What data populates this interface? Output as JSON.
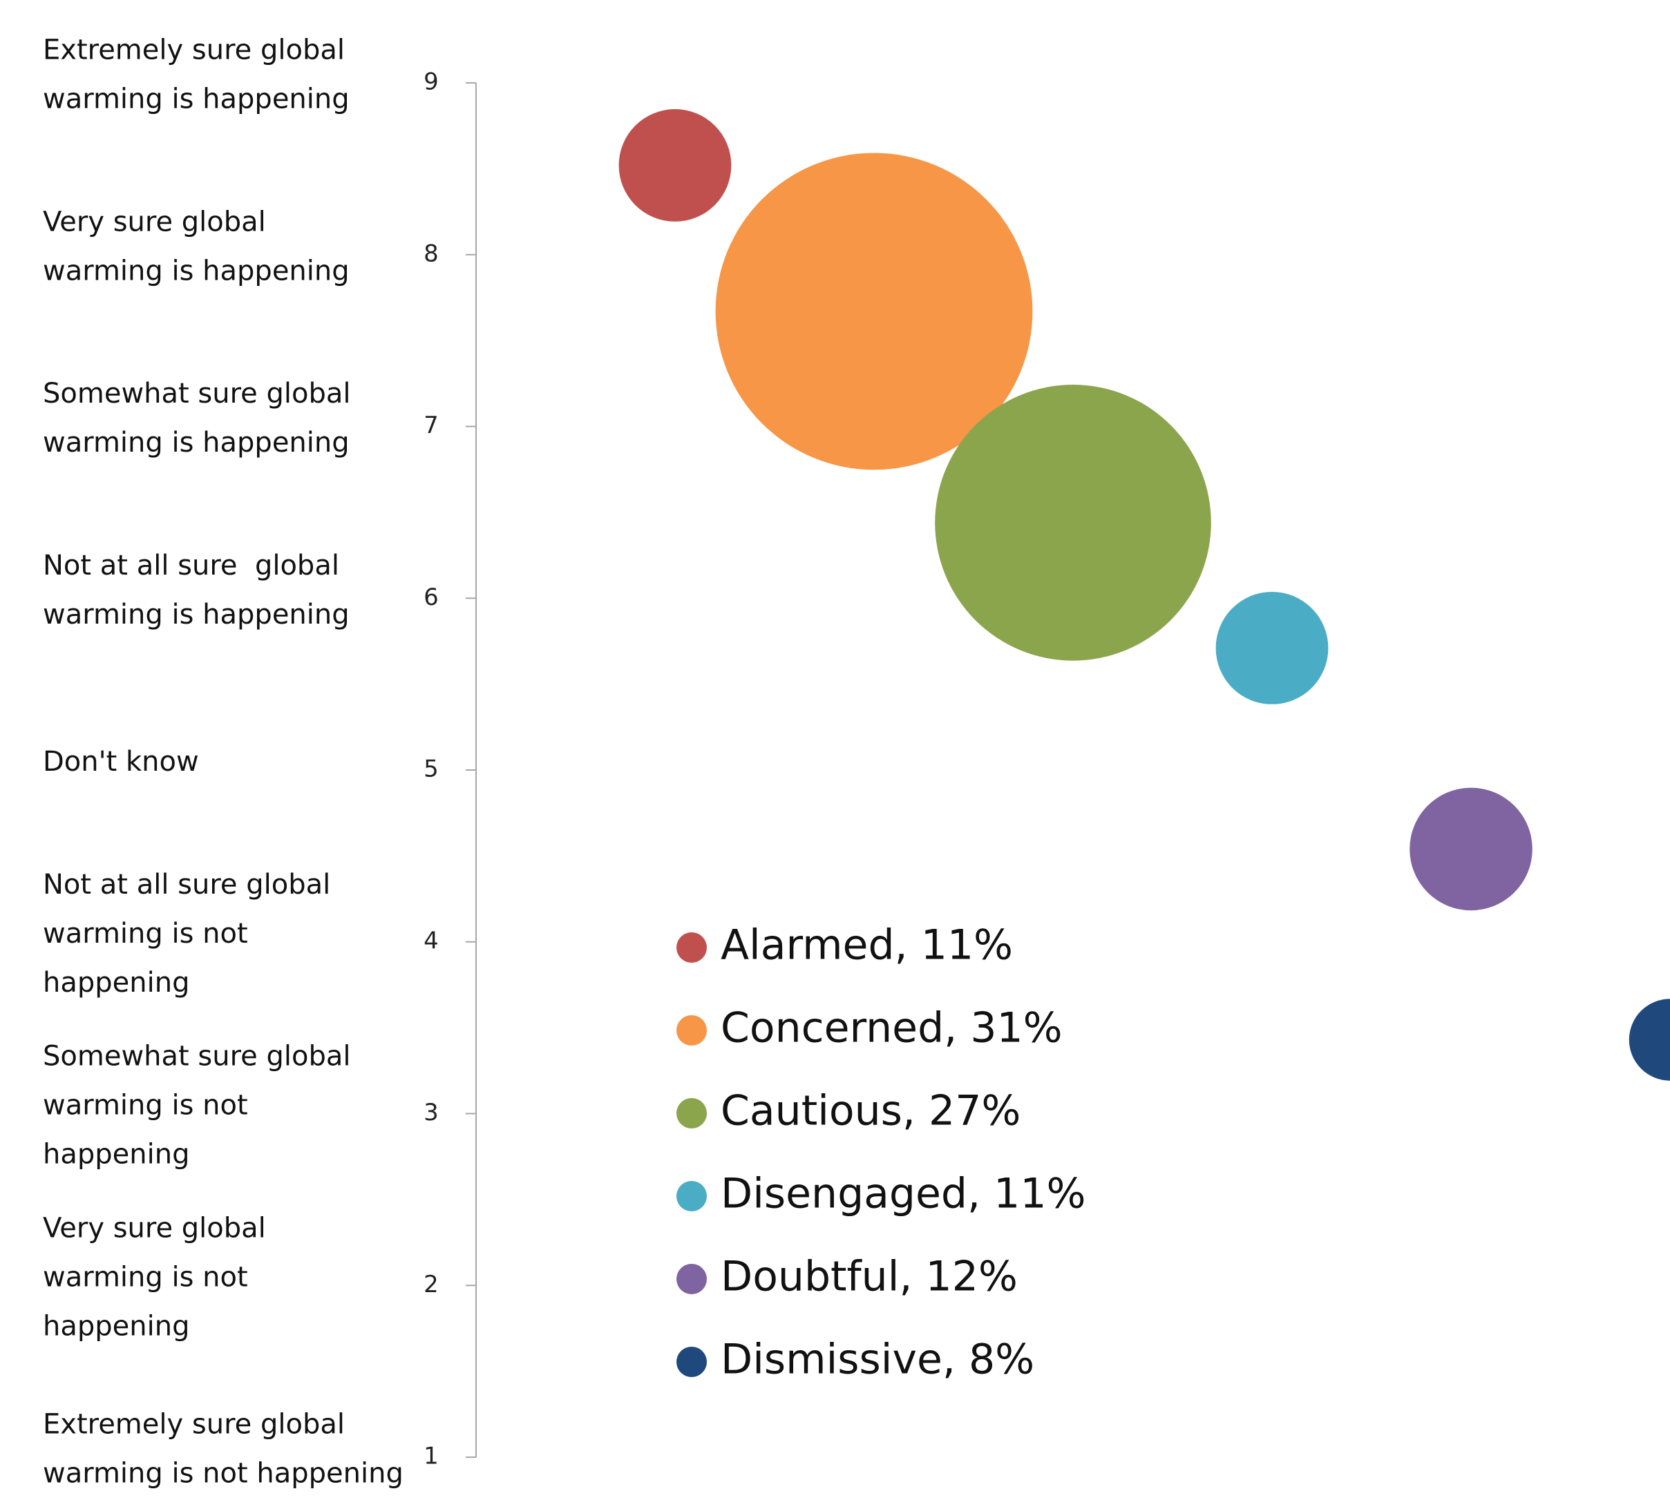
{
  "chart_data": {
    "type": "bubble",
    "ylim": [
      1,
      9
    ],
    "yticks": [
      1,
      2,
      3,
      4,
      5,
      6,
      7,
      8,
      9
    ],
    "xlim": [
      0,
      6
    ],
    "ylabels": [
      [
        "Extremely sure global",
        "warming is not happening"
      ],
      [
        "Very sure global",
        "warming is not",
        "happening"
      ],
      [
        "Somewhat sure global",
        "warming is not",
        "happening"
      ],
      [
        "Not at all sure global",
        "warming is not",
        "happening"
      ],
      [
        "Don't know"
      ],
      [
        "Not at all sure  global",
        "warming is happening"
      ],
      [
        "Somewhat sure global",
        "warming is happening"
      ],
      [
        "Very sure global",
        "warming is happening"
      ],
      [
        "Extremely sure global",
        "warming is happening"
      ]
    ],
    "legend": "bottom-center",
    "series": [
      {
        "name": "Alarmed, 11%",
        "color": "#c0504d",
        "x": [
          1
        ],
        "values": [
          8.52
        ],
        "sizes": [
          11
        ]
      },
      {
        "name": "Concerned, 31%",
        "color": "#f79646",
        "x": [
          2
        ],
        "values": [
          7.67
        ],
        "sizes": [
          31
        ]
      },
      {
        "name": "Cautious, 27%",
        "color": "#8ba54d",
        "x": [
          3
        ],
        "values": [
          6.44
        ],
        "sizes": [
          27
        ]
      },
      {
        "name": "Disengaged, 11%",
        "color": "#4bacc6",
        "x": [
          4
        ],
        "values": [
          5.71
        ],
        "sizes": [
          11
        ]
      },
      {
        "name": "Doubtful, 12%",
        "color": "#8064a2",
        "x": [
          5
        ],
        "values": [
          4.54
        ],
        "sizes": [
          12
        ]
      },
      {
        "name": "Dismissive, 8%",
        "color": "#1f497d",
        "x": [
          6
        ],
        "values": [
          3.43
        ],
        "sizes": [
          8
        ]
      }
    ]
  }
}
